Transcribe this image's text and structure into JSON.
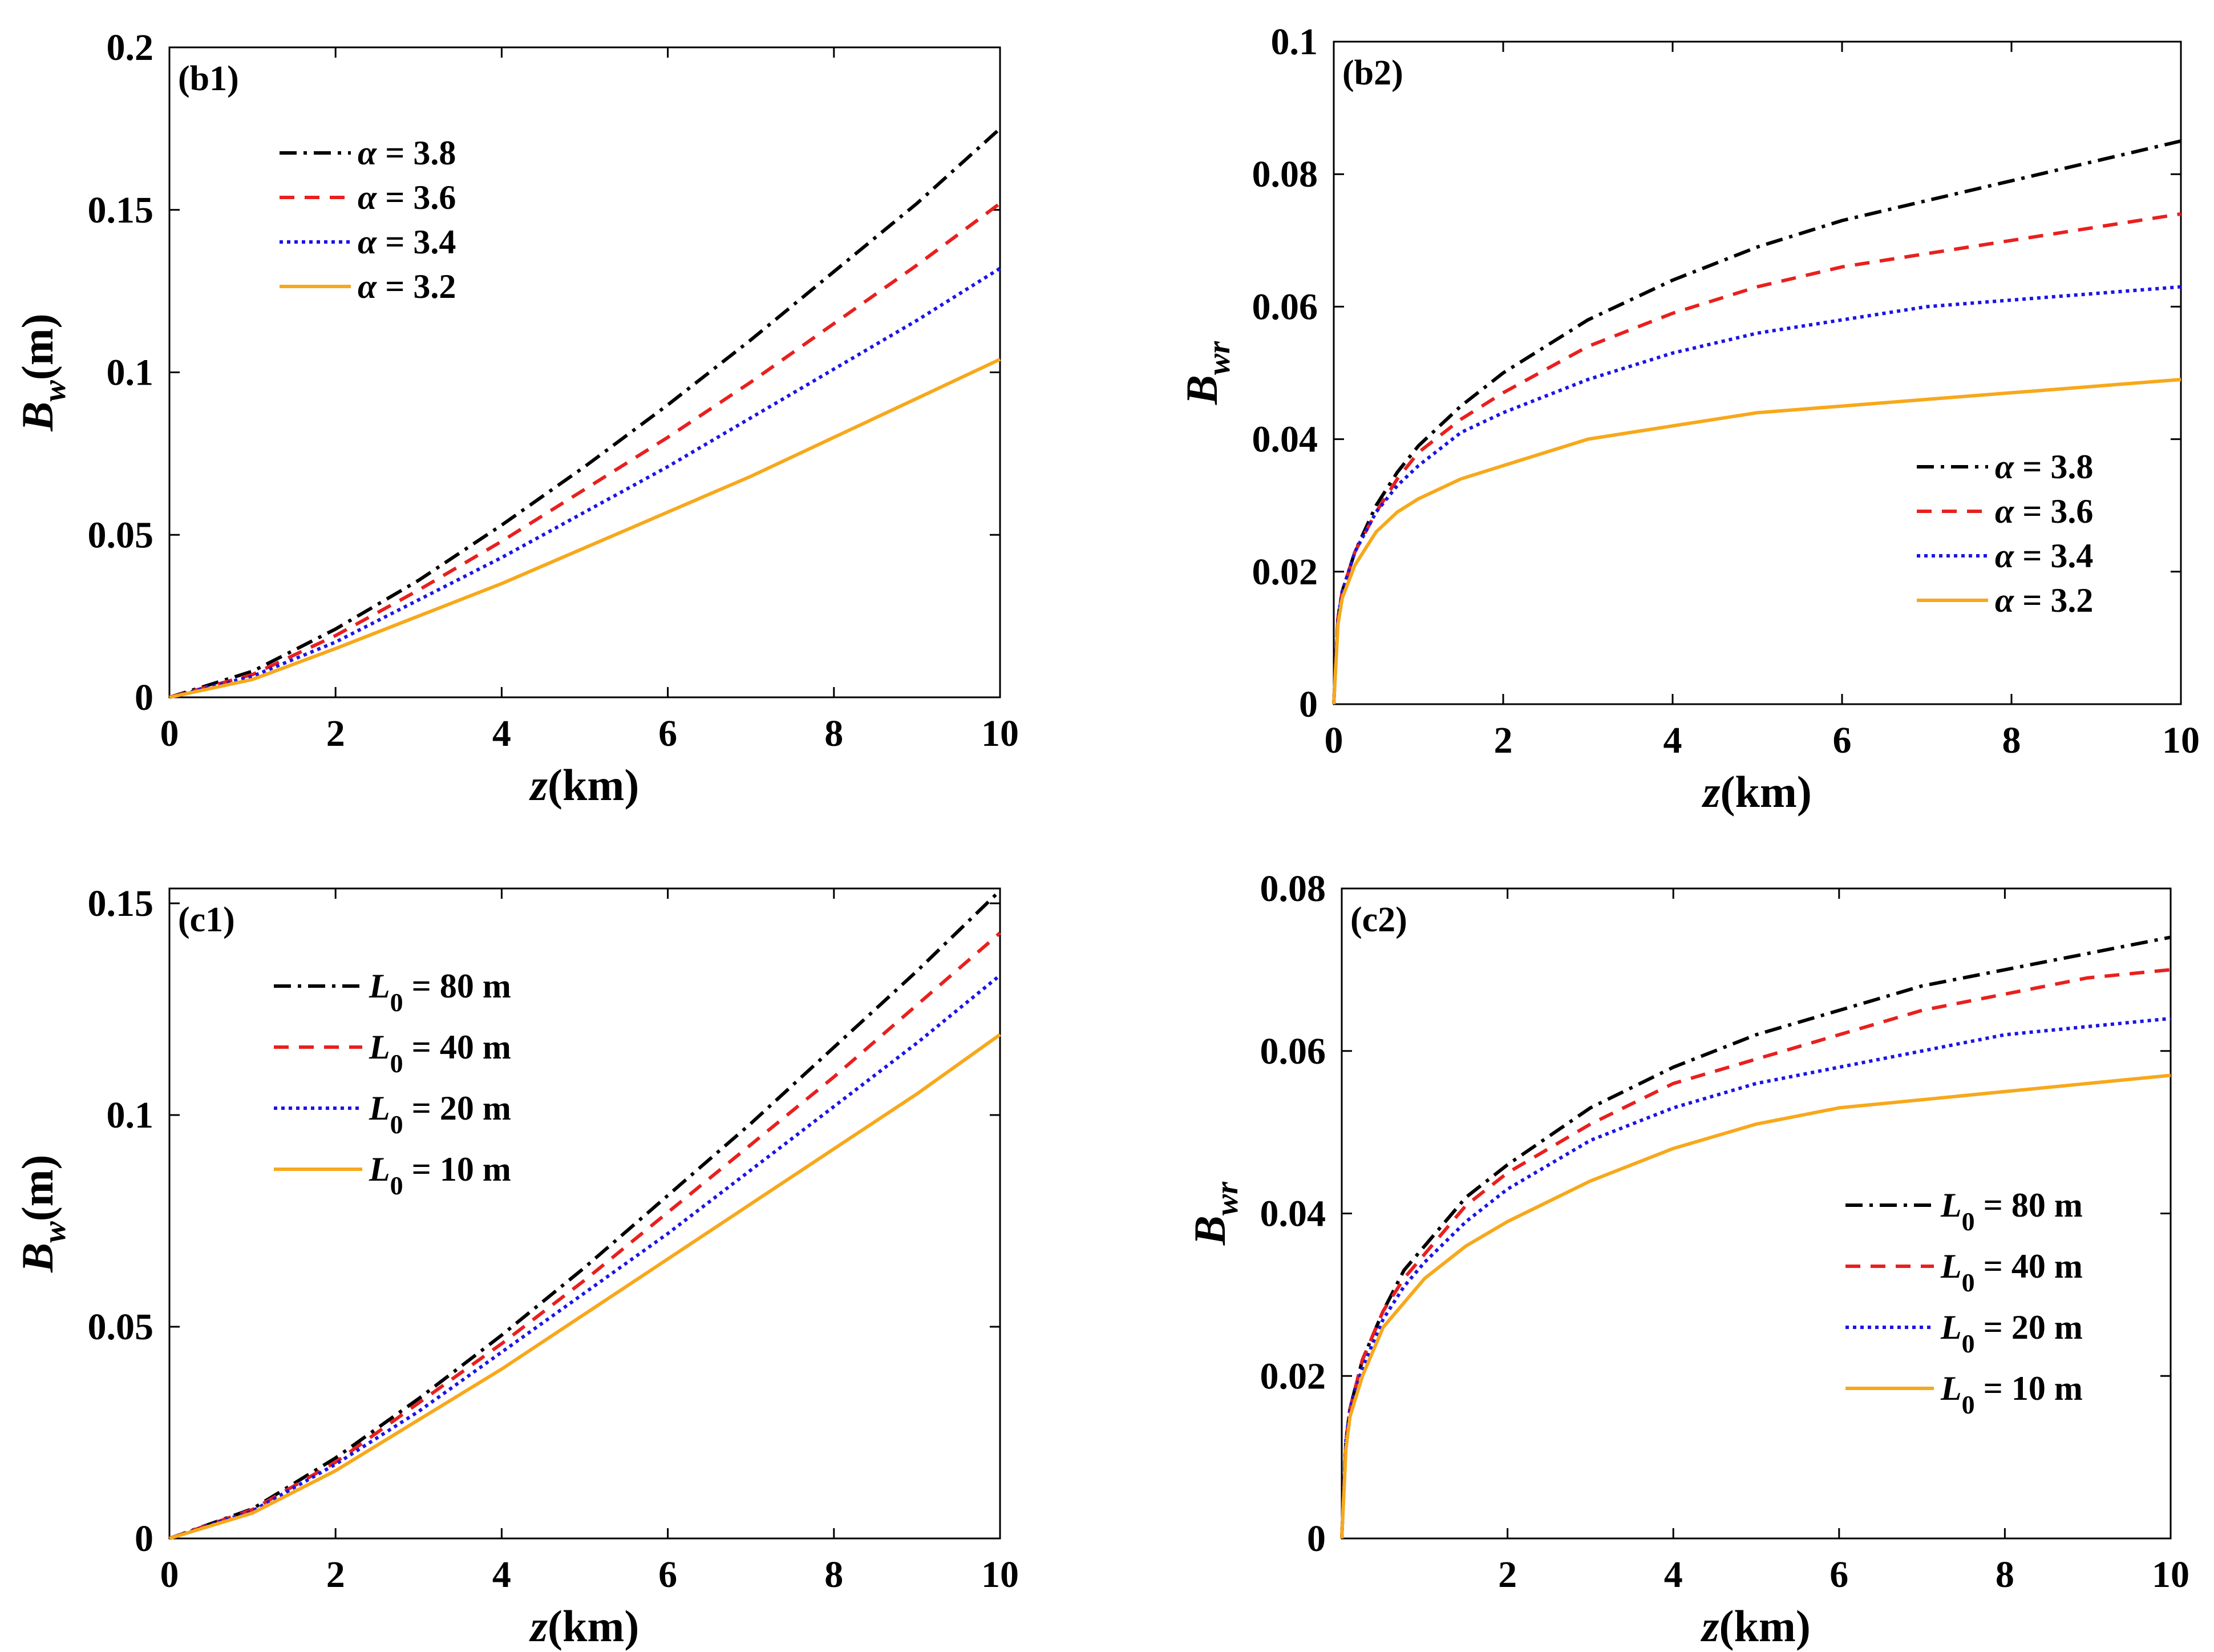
{
  "figure": {
    "colors": {
      "black": "#000000",
      "red": "#e8201e",
      "blue": "#1c14e6",
      "orange": "#f7a81b"
    }
  },
  "chart_data": [
    {
      "id": "b1",
      "type": "line",
      "panel_label": "(b1)",
      "xlabel": "z(km)",
      "ylabel_main": "B",
      "ylabel_sub": "w",
      "ylabel_suffix": "(m)",
      "xlim": [
        0,
        10
      ],
      "ylim": [
        0,
        0.2
      ],
      "xticks": [
        0,
        2,
        4,
        6,
        8,
        10
      ],
      "xtick_labels": [
        "0",
        "2",
        "4",
        "6",
        "8",
        "10"
      ],
      "yticks": [
        0,
        0.05,
        0.1,
        0.15,
        0.2
      ],
      "ytick_labels": [
        "0",
        "0.05",
        "0.1",
        "0.15",
        "0.2"
      ],
      "legend_position": "top-left",
      "x": [
        0,
        1,
        2,
        3,
        4,
        5,
        6,
        7,
        8,
        9,
        10
      ],
      "series": [
        {
          "var": "α",
          "value_text": " = 3.8",
          "style": "dashdot",
          "color": "#000000",
          "values": [
            0,
            0.008,
            0.021,
            0.036,
            0.053,
            0.071,
            0.09,
            0.11,
            0.131,
            0.152,
            0.175
          ]
        },
        {
          "var": "α",
          "value_text": " = 3.6",
          "style": "dashed",
          "color": "#e8201e",
          "values": [
            0,
            0.007,
            0.019,
            0.033,
            0.048,
            0.064,
            0.08,
            0.097,
            0.115,
            0.133,
            0.152
          ]
        },
        {
          "var": "α",
          "value_text": " = 3.4",
          "style": "dotted",
          "color": "#1c14e6",
          "values": [
            0,
            0.0065,
            0.017,
            0.03,
            0.043,
            0.057,
            0.071,
            0.086,
            0.101,
            0.116,
            0.132
          ]
        },
        {
          "var": "α",
          "value_text": " = 3.2",
          "style": "solid",
          "color": "#f7a81b",
          "values": [
            0,
            0.0055,
            0.015,
            0.025,
            0.035,
            0.046,
            0.057,
            0.068,
            0.08,
            0.092,
            0.104
          ]
        }
      ]
    },
    {
      "id": "b2",
      "type": "line",
      "panel_label": "(b2)",
      "xlabel": "z(km)",
      "ylabel_main": "B",
      "ylabel_sub": "wr",
      "ylabel_suffix": "",
      "xlim": [
        0,
        10
      ],
      "ylim": [
        0,
        0.1
      ],
      "xticks": [
        0,
        2,
        4,
        6,
        8,
        10
      ],
      "xtick_labels": [
        "0",
        "2",
        "4",
        "6",
        "8",
        "10"
      ],
      "yticks": [
        0,
        0.02,
        0.04,
        0.06,
        0.08,
        0.1
      ],
      "ytick_labels": [
        "0",
        "0.02",
        "0.04",
        "0.06",
        "0.08",
        "0.1"
      ],
      "legend_position": "bottom-right",
      "x": [
        0,
        0.05,
        0.1,
        0.25,
        0.5,
        0.75,
        1,
        1.5,
        2,
        3,
        4,
        5,
        6,
        7,
        8,
        9,
        10
      ],
      "series": [
        {
          "var": "α",
          "value_text": " = 3.8",
          "style": "dashdot",
          "color": "#000000",
          "values": [
            0,
            0.013,
            0.017,
            0.023,
            0.03,
            0.035,
            0.039,
            0.045,
            0.05,
            0.058,
            0.064,
            0.069,
            0.073,
            0.076,
            0.079,
            0.082,
            0.085
          ]
        },
        {
          "var": "α",
          "value_text": " = 3.6",
          "style": "dashed",
          "color": "#e8201e",
          "values": [
            0,
            0.013,
            0.017,
            0.023,
            0.029,
            0.034,
            0.038,
            0.043,
            0.047,
            0.054,
            0.059,
            0.063,
            0.066,
            0.068,
            0.07,
            0.072,
            0.074
          ]
        },
        {
          "var": "α",
          "value_text": " = 3.4",
          "style": "dotted",
          "color": "#1c14e6",
          "values": [
            0,
            0.013,
            0.017,
            0.023,
            0.029,
            0.033,
            0.036,
            0.041,
            0.044,
            0.049,
            0.053,
            0.056,
            0.058,
            0.06,
            0.061,
            0.062,
            0.063
          ]
        },
        {
          "var": "α",
          "value_text": " = 3.2",
          "style": "solid",
          "color": "#f7a81b",
          "values": [
            0,
            0.012,
            0.016,
            0.021,
            0.026,
            0.029,
            0.031,
            0.034,
            0.036,
            0.04,
            0.042,
            0.044,
            0.045,
            0.046,
            0.047,
            0.048,
            0.049
          ]
        }
      ]
    },
    {
      "id": "c1",
      "type": "line",
      "panel_label": "(c1)",
      "xlabel": "z(km)",
      "ylabel_main": "B",
      "ylabel_sub": "w",
      "ylabel_suffix": "(m)",
      "xlim": [
        0,
        10
      ],
      "ylim": [
        0,
        0.15
      ],
      "yaxis_top": 0.1535,
      "xticks": [
        0,
        2,
        4,
        6,
        8,
        10
      ],
      "xtick_labels": [
        "0",
        "2",
        "4",
        "6",
        "8",
        "10"
      ],
      "yticks": [
        0,
        0.05,
        0.1,
        0.15
      ],
      "ytick_labels": [
        "0",
        "0.05",
        "0.1",
        "0.15"
      ],
      "legend_position": "top-left",
      "x": [
        0,
        1,
        2,
        3,
        4,
        5,
        6,
        7,
        8,
        9,
        10
      ],
      "series": [
        {
          "var": "L",
          "var_sub": "0",
          "value_text": " = 80 m",
          "style": "dashdot",
          "color": "#000000",
          "values": [
            0,
            0.007,
            0.019,
            0.033,
            0.048,
            0.064,
            0.081,
            0.098,
            0.116,
            0.134,
            0.153
          ]
        },
        {
          "var": "L",
          "var_sub": "0",
          "value_text": " = 40 m",
          "style": "dashed",
          "color": "#e8201e",
          "values": [
            0,
            0.0068,
            0.018,
            0.032,
            0.046,
            0.061,
            0.077,
            0.093,
            0.109,
            0.126,
            0.143
          ]
        },
        {
          "var": "L",
          "var_sub": "0",
          "value_text": " = 20 m",
          "style": "dotted",
          "color": "#1c14e6",
          "values": [
            0,
            0.0065,
            0.0175,
            0.03,
            0.044,
            0.058,
            0.072,
            0.087,
            0.102,
            0.117,
            0.133
          ]
        },
        {
          "var": "L",
          "var_sub": "0",
          "value_text": " = 10 m",
          "style": "solid",
          "color": "#f7a81b",
          "values": [
            0,
            0.006,
            0.016,
            0.028,
            0.04,
            0.053,
            0.066,
            0.079,
            0.092,
            0.105,
            0.119
          ]
        }
      ]
    },
    {
      "id": "c2",
      "type": "line",
      "panel_label": "(c2)",
      "xlabel": "z(km)",
      "ylabel_main": "B",
      "ylabel_sub": "wr",
      "ylabel_suffix": "",
      "xlim": [
        0,
        10
      ],
      "ylim": [
        0,
        0.08
      ],
      "xticks": [
        2,
        4,
        6,
        8,
        10
      ],
      "xtick_labels": [
        "2",
        "4",
        "6",
        "8",
        "10"
      ],
      "yticks": [
        0,
        0.02,
        0.04,
        0.06,
        0.08
      ],
      "ytick_labels": [
        "0",
        "0.02",
        "0.04",
        "0.06",
        "0.08"
      ],
      "legend_position": "bottom-right",
      "x": [
        0,
        0.05,
        0.1,
        0.25,
        0.5,
        0.75,
        1,
        1.5,
        2,
        3,
        4,
        5,
        6,
        7,
        8,
        9,
        10
      ],
      "series": [
        {
          "var": "L",
          "var_sub": "0",
          "value_text": " = 80 m",
          "style": "dashdot",
          "color": "#000000",
          "values": [
            0,
            0.012,
            0.016,
            0.022,
            0.028,
            0.033,
            0.036,
            0.042,
            0.046,
            0.053,
            0.058,
            0.062,
            0.065,
            0.068,
            0.07,
            0.072,
            0.074
          ]
        },
        {
          "var": "L",
          "var_sub": "0",
          "value_text": " = 40 m",
          "style": "dashed",
          "color": "#e8201e",
          "values": [
            0,
            0.012,
            0.016,
            0.022,
            0.028,
            0.032,
            0.035,
            0.041,
            0.045,
            0.051,
            0.056,
            0.059,
            0.062,
            0.065,
            0.067,
            0.069,
            0.07
          ]
        },
        {
          "var": "L",
          "var_sub": "0",
          "value_text": " = 20 m",
          "style": "dotted",
          "color": "#1c14e6",
          "values": [
            0,
            0.012,
            0.016,
            0.021,
            0.027,
            0.031,
            0.034,
            0.039,
            0.043,
            0.049,
            0.053,
            0.056,
            0.058,
            0.06,
            0.062,
            0.063,
            0.064
          ]
        },
        {
          "var": "L",
          "var_sub": "0",
          "value_text": " = 10 m",
          "style": "solid",
          "color": "#f7a81b",
          "values": [
            0,
            0.011,
            0.015,
            0.02,
            0.026,
            0.029,
            0.032,
            0.036,
            0.039,
            0.044,
            0.048,
            0.051,
            0.053,
            0.054,
            0.055,
            0.056,
            0.057
          ]
        }
      ]
    }
  ]
}
